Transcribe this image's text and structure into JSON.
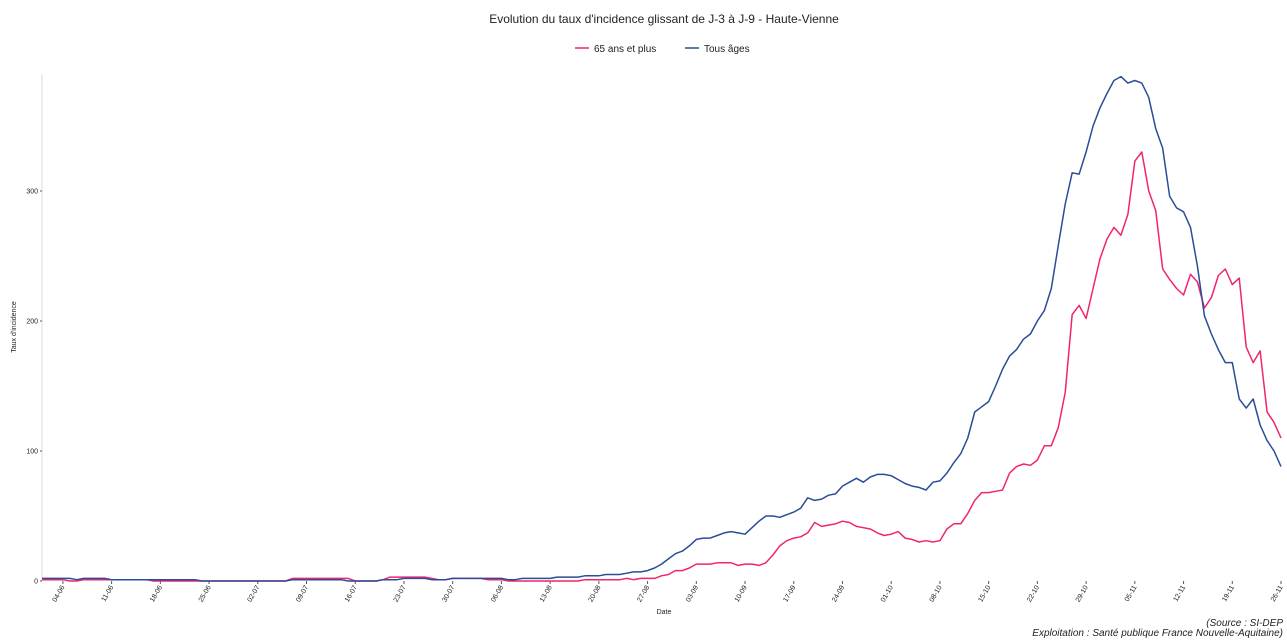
{
  "chart_data": {
    "type": "line",
    "title": "Evolution du taux d'incidence glissant de J-3 à J-9 - Haute-Vienne",
    "x_label": "Date",
    "y_label": "Taux d'incidence",
    "caption": [
      "(Source : SI-DEP",
      "Exploitation : Santé publique France Nouvelle-Aquitaine)"
    ],
    "categories": [
      null,
      null,
      null,
      "04-06",
      null,
      null,
      null,
      null,
      null,
      null,
      "11-06",
      null,
      null,
      null,
      null,
      null,
      null,
      "18-06",
      null,
      null,
      null,
      null,
      null,
      null,
      "25-06",
      null,
      null,
      null,
      null,
      null,
      null,
      "02-07",
      null,
      null,
      null,
      null,
      null,
      null,
      "09-07",
      null,
      null,
      null,
      null,
      null,
      null,
      "16-07",
      null,
      null,
      null,
      null,
      null,
      null,
      "23-07",
      null,
      null,
      null,
      null,
      null,
      null,
      "30-07",
      null,
      null,
      null,
      null,
      null,
      null,
      "06-08",
      null,
      null,
      null,
      null,
      null,
      null,
      "13-08",
      null,
      null,
      null,
      null,
      null,
      null,
      "20-08",
      null,
      null,
      null,
      null,
      null,
      null,
      "27-08",
      null,
      null,
      null,
      null,
      null,
      null,
      "03-09",
      null,
      null,
      null,
      null,
      null,
      null,
      "10-09",
      null,
      null,
      null,
      null,
      null,
      null,
      "17-09",
      null,
      null,
      null,
      null,
      null,
      null,
      "24-09",
      null,
      null,
      null,
      null,
      null,
      null,
      "01-10",
      null,
      null,
      null,
      null,
      null,
      null,
      "08-10",
      null,
      null,
      null,
      null,
      null,
      null,
      "15-10",
      null,
      null,
      null,
      null,
      null,
      null,
      "22-10",
      null,
      null,
      null,
      null,
      null,
      null,
      "29-10",
      null,
      null,
      null,
      null,
      null,
      null,
      "05-11",
      null,
      null,
      null,
      null,
      null,
      null,
      "12-11",
      null,
      null,
      null,
      null,
      null,
      null,
      "19-11",
      null,
      null,
      null,
      null,
      null,
      null,
      "26-11"
    ],
    "series": [
      {
        "name": "65 ans et plus",
        "color": "#f0246f",
        "values": [
          1,
          1,
          1,
          1,
          0,
          0,
          1,
          1,
          1,
          1,
          1,
          1,
          1,
          1,
          1,
          1,
          0,
          0,
          0,
          0,
          0,
          0,
          0,
          0,
          0,
          0,
          0,
          0,
          0,
          0,
          0,
          0,
          0,
          0,
          0,
          0,
          2,
          2,
          2,
          2,
          2,
          2,
          2,
          2,
          2,
          0,
          0,
          0,
          0,
          1,
          3,
          3,
          3,
          3,
          3,
          3,
          2,
          1,
          1,
          2,
          2,
          2,
          2,
          2,
          1,
          1,
          1,
          0,
          0,
          0,
          0,
          0,
          0,
          0,
          0,
          0,
          0,
          0,
          1,
          1,
          1,
          1,
          1,
          1,
          2,
          1,
          2,
          2,
          2,
          4,
          5,
          8,
          8,
          10,
          13,
          13,
          13,
          14,
          14,
          14,
          12,
          13,
          13,
          12,
          14,
          20,
          27,
          31,
          33,
          34,
          37,
          45,
          42,
          43,
          44,
          46,
          45,
          42,
          41,
          40,
          37,
          35,
          36,
          38,
          33,
          32,
          30,
          31,
          30,
          31,
          40,
          44,
          44,
          52,
          62,
          68,
          68,
          69,
          70,
          83,
          88,
          90,
          89,
          93,
          104,
          104,
          118,
          145,
          205,
          212,
          202,
          225,
          248,
          263,
          272,
          266,
          282,
          323,
          330,
          300,
          285,
          240,
          232,
          225,
          220,
          236,
          230,
          210,
          218,
          235,
          240,
          228,
          233,
          180,
          168,
          177,
          130,
          122,
          110
        ]
      },
      {
        "name": "Tous âges",
        "color": "#2a4d96",
        "values": [
          2,
          2,
          2,
          2,
          2,
          1,
          2,
          2,
          2,
          2,
          1,
          1,
          1,
          1,
          1,
          1,
          1,
          1,
          1,
          1,
          1,
          1,
          1,
          0,
          0,
          0,
          0,
          0,
          0,
          0,
          0,
          0,
          0,
          0,
          0,
          0,
          1,
          1,
          1,
          1,
          1,
          1,
          1,
          1,
          0,
          0,
          0,
          0,
          0,
          1,
          1,
          1,
          2,
          2,
          2,
          2,
          1,
          1,
          1,
          2,
          2,
          2,
          2,
          2,
          2,
          2,
          2,
          1,
          1,
          2,
          2,
          2,
          2,
          2,
          3,
          3,
          3,
          3,
          4,
          4,
          4,
          5,
          5,
          5,
          6,
          7,
          7,
          8,
          10,
          13,
          17,
          21,
          23,
          27,
          32,
          33,
          33,
          35,
          37,
          38,
          37,
          36,
          41,
          46,
          50,
          50,
          49,
          51,
          53,
          56,
          64,
          62,
          63,
          66,
          67,
          73,
          76,
          79,
          76,
          80,
          82,
          82,
          81,
          78,
          75,
          73,
          72,
          70,
          76,
          77,
          83,
          91,
          98,
          110,
          130,
          134,
          138,
          150,
          163,
          173,
          178,
          186,
          190,
          200,
          208,
          225,
          258,
          290,
          314,
          313,
          330,
          350,
          364,
          375,
          385,
          388,
          383,
          385,
          383,
          372,
          348,
          333,
          296,
          287,
          284,
          272,
          242,
          204,
          190,
          178,
          168,
          168,
          140,
          133,
          140,
          120,
          108,
          100,
          88
        ]
      }
    ],
    "ylim": [
      0,
      390
    ],
    "yticks": [
      0,
      100,
      200,
      300
    ],
    "grid": false,
    "legend": "top"
  }
}
